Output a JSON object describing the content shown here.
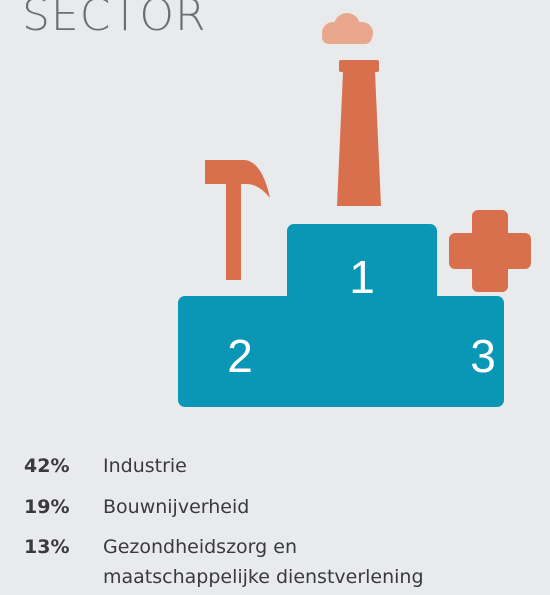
{
  "header": {
    "title": "SECTOR"
  },
  "podium": {
    "ranks": [
      "1",
      "2",
      "3"
    ]
  },
  "list": [
    {
      "percent": "42%",
      "label": "Industrie"
    },
    {
      "percent": "19%",
      "label": "Bouwnijverheid"
    },
    {
      "percent": "13%",
      "label": "Gezondheidszorg en",
      "label_line2": "maatschappelijke dienstverlening"
    }
  ]
}
